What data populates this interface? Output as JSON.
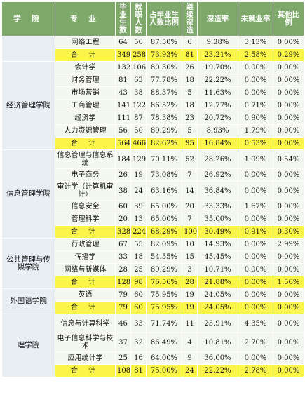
{
  "header": {
    "college": "学 院",
    "major": "专 业",
    "graduates": "毕业生数",
    "employed": "就职人数",
    "employed_pct": "占毕业生人数比例",
    "further_study": "继续深造",
    "further_rate": "深造率",
    "unemployed_rate": "未就业率",
    "other_pct": "其他比例"
  },
  "colleges": [
    {
      "name": "",
      "rows": [
        {
          "major": "网络工程",
          "graduates": "64",
          "employed": "56",
          "employed_pct": "87.50%",
          "further": "6",
          "further_rate": "9.38%",
          "unemployed": "3.13%",
          "other": "0.00%"
        },
        {
          "major": "合 计",
          "total": true,
          "graduates": "349",
          "employed": "258",
          "employed_pct": "73.93%",
          "further": "81",
          "further_rate": "23.21%",
          "unemployed": "2.58%",
          "other": "0.29%"
        }
      ]
    },
    {
      "name": "经济管理学院",
      "rows": [
        {
          "major": "会计学",
          "graduates": "132",
          "employed": "106",
          "employed_pct": "80.30%",
          "further": "26",
          "further_rate": "19.70%",
          "unemployed": "0.00%",
          "other": "0.00%"
        },
        {
          "major": "财务管理",
          "graduates": "81",
          "employed": "63",
          "employed_pct": "77.78%",
          "further": "18",
          "further_rate": "22.22%",
          "unemployed": "0.00%",
          "other": "0.00%"
        },
        {
          "major": "市场营销",
          "graduates": "43",
          "employed": "38",
          "employed_pct": "88.37%",
          "further": "5",
          "further_rate": "11.63%",
          "unemployed": "0.00%",
          "other": "0.00%"
        },
        {
          "major": "工商管理",
          "graduates": "141",
          "employed": "122",
          "employed_pct": "86.52%",
          "further": "18",
          "further_rate": "12.77%",
          "unemployed": "0.71%",
          "other": "0.00%"
        },
        {
          "major": "经济学",
          "graduates": "111",
          "employed": "87",
          "employed_pct": "78.38%",
          "further": "23",
          "further_rate": "20.72%",
          "unemployed": "0.90%",
          "other": "0.00%"
        },
        {
          "major": "人力资源管理",
          "graduates": "56",
          "employed": "50",
          "employed_pct": "89.29%",
          "further": "5",
          "further_rate": "8.93%",
          "unemployed": "1.79%",
          "other": "0.00%"
        },
        {
          "major": "合 计",
          "total": true,
          "graduates": "564",
          "employed": "466",
          "employed_pct": "82.62%",
          "further": "95",
          "further_rate": "16.84%",
          "unemployed": "0.53%",
          "other": "0.00%"
        }
      ]
    },
    {
      "name": "信息管理学院",
      "rows": [
        {
          "major": "信息管理与信息系统",
          "wrap": true,
          "graduates": "184",
          "employed": "129",
          "employed_pct": "70.11%",
          "further": "52",
          "further_rate": "28.26%",
          "unemployed": "1.09%",
          "other": "0.54%"
        },
        {
          "major": "电子商务",
          "graduates": "26",
          "employed": "19",
          "employed_pct": "73.08%",
          "further": "7",
          "further_rate": "26.92%",
          "unemployed": "0.00%",
          "other": "0.00%"
        },
        {
          "major": "审计学（计算机审计）",
          "wrap": true,
          "graduates": "38",
          "employed": "24",
          "employed_pct": "63.16%",
          "further": "14",
          "further_rate": "36.84%",
          "unemployed": "0.00%",
          "other": "0.00%"
        },
        {
          "major": "信息安全",
          "graduates": "60",
          "employed": "39",
          "employed_pct": "65.00%",
          "further": "20",
          "further_rate": "33.33%",
          "unemployed": "1.67%",
          "other": "0.00%"
        },
        {
          "major": "管理科学",
          "graduates": "20",
          "employed": "13",
          "employed_pct": "65.00%",
          "further": "7",
          "further_rate": "35.00%",
          "unemployed": "0.00%",
          "other": "0.00%"
        },
        {
          "major": "合 计",
          "total": true,
          "graduates": "328",
          "employed": "224",
          "employed_pct": "68.29%",
          "further": "100",
          "further_rate": "30.49%",
          "unemployed": "0.91%",
          "other": "0.30%"
        }
      ]
    },
    {
      "name": "公共管理与传媒学院",
      "rows": [
        {
          "major": "行政管理",
          "graduates": "67",
          "employed": "55",
          "employed_pct": "82.09%",
          "further": "10",
          "further_rate": "14.93%",
          "unemployed": "0.00%",
          "other": "2.99%"
        },
        {
          "major": "传播学",
          "graduates": "33",
          "employed": "18",
          "employed_pct": "54.55%",
          "further": "15",
          "further_rate": "45.45%",
          "unemployed": "0.00%",
          "other": "0.00%"
        },
        {
          "major": "网络与新媒体",
          "graduates": "28",
          "employed": "25",
          "employed_pct": "89.29%",
          "further": "3",
          "further_rate": "10.71%",
          "unemployed": "0.00%",
          "other": "0.00%"
        },
        {
          "major": "合 计",
          "total": true,
          "graduates": "128",
          "employed": "98",
          "employed_pct": "76.56%",
          "further": "28",
          "further_rate": "21.88%",
          "unemployed": "0.00%",
          "other": "1.56%"
        }
      ]
    },
    {
      "name": "外国语学院",
      "rows": [
        {
          "major": "英语",
          "graduates": "79",
          "employed": "60",
          "employed_pct": "75.95%",
          "further": "19",
          "further_rate": "24.05%",
          "unemployed": "0.00%",
          "other": "0.00%"
        },
        {
          "major": "合 计",
          "total": true,
          "graduates": "79",
          "employed": "60",
          "employed_pct": "75.95%",
          "further": "19",
          "further_rate": "24.05%",
          "unemployed": "0.00%",
          "other": "0.00%"
        }
      ]
    },
    {
      "name": "理学院",
      "rows": [
        {
          "major": "信息与计算科学",
          "wrap": true,
          "graduates": "46",
          "employed": "33",
          "employed_pct": "71.74%",
          "further": "11",
          "further_rate": "23.91%",
          "unemployed": "4.35%",
          "other": "0.00%"
        },
        {
          "major": "电子信息科学与技术",
          "wrap": true,
          "graduates": "37",
          "employed": "32",
          "employed_pct": "86.49%",
          "further": "4",
          "further_rate": "10.81%",
          "unemployed": "2.70%",
          "other": "0.00%"
        },
        {
          "major": "应用统计学",
          "graduates": "25",
          "employed": "16",
          "employed_pct": "64.00%",
          "further": "9",
          "further_rate": "36.00%",
          "unemployed": "0.00%",
          "other": "0.00%"
        },
        {
          "major": "合 计",
          "total": true,
          "graduates": "108",
          "employed": "81",
          "employed_pct": "75.00%",
          "further": "24",
          "further_rate": "22.22%",
          "unemployed": "2.78%",
          "other": "0.00%"
        }
      ]
    }
  ]
}
